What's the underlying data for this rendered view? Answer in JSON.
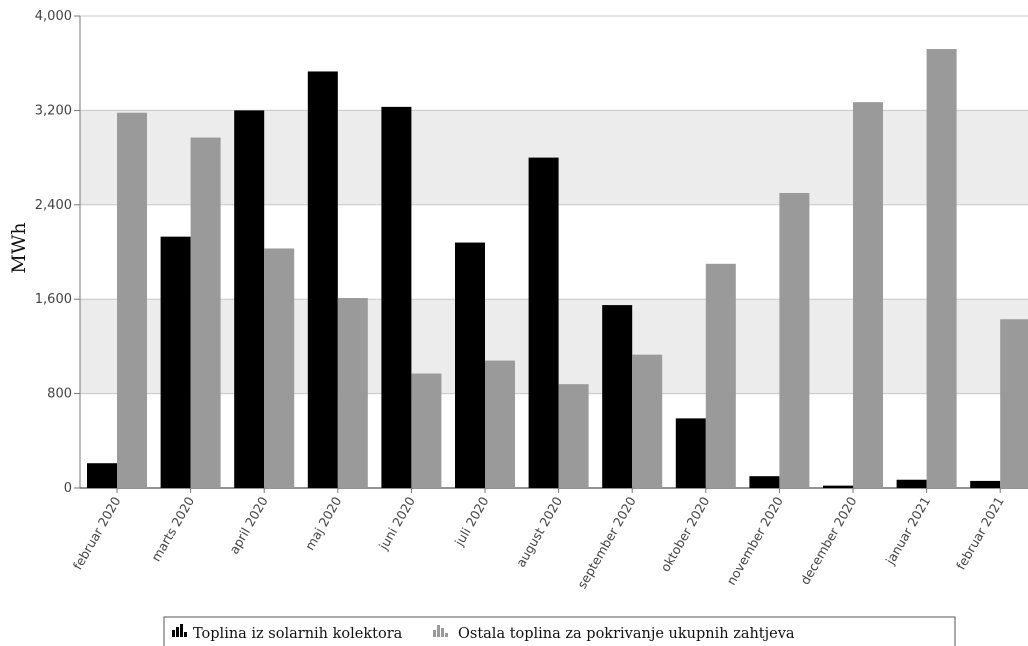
{
  "chart_data": {
    "type": "bar",
    "categories": [
      "februar 2020",
      "marts 2020",
      "april 2020",
      "maj 2020",
      "juni 2020",
      "juli 2020",
      "august 2020",
      "september 2020",
      "oktober 2020",
      "november 2020",
      "december 2020",
      "januar 2021",
      "februar 2021"
    ],
    "series": [
      {
        "name": "Toplina iz solarnih kolektora",
        "color": "#000000",
        "values": [
          210,
          2130,
          3200,
          3530,
          3230,
          2080,
          2800,
          1550,
          590,
          100,
          20,
          70,
          60
        ]
      },
      {
        "name": "Ostala toplina za pokrivanje ukupnih zahtjeva",
        "color": "#9a9a9a",
        "values": [
          3180,
          2970,
          2030,
          1610,
          970,
          1080,
          880,
          1130,
          1900,
          2500,
          3270,
          3720,
          1430
        ]
      }
    ],
    "ylabel": "MWh",
    "xlabel": "",
    "title": "",
    "ylim": [
      0,
      4000
    ],
    "yticks": [
      0,
      800,
      1600,
      2400,
      3200,
      4000
    ],
    "ytick_labels": [
      "0",
      "800",
      "1,600",
      "2,400",
      "3,200",
      "4,000"
    ],
    "grid": true,
    "band_fill": "#ececec",
    "grid_color": "#c8c8c8",
    "legend_position": "bottom-center"
  }
}
